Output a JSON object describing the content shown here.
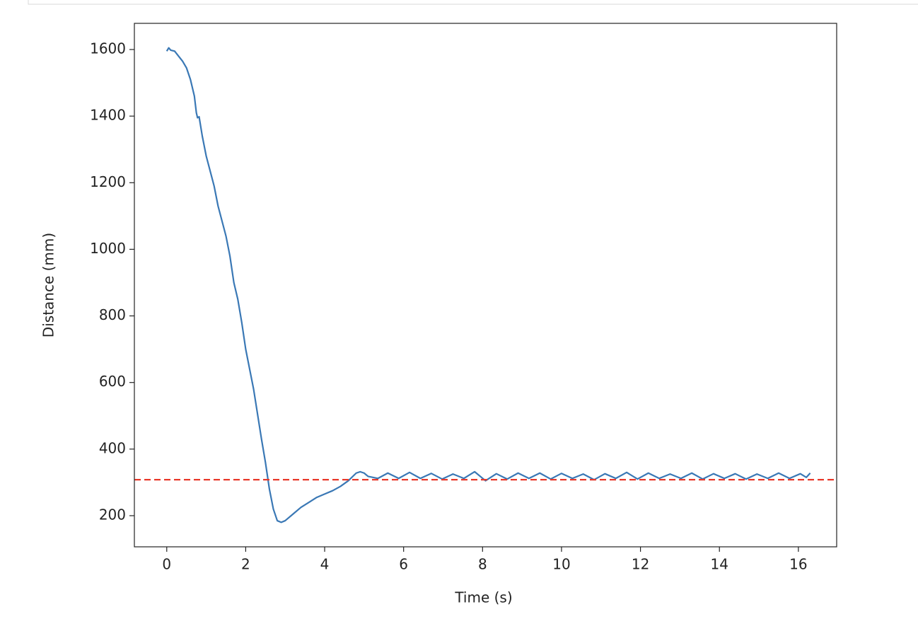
{
  "chart_data": {
    "type": "line",
    "xlabel": "Time (s)",
    "ylabel": "Distance (mm)",
    "color": "#3a78b5",
    "x": [
      0,
      0.05,
      0.1,
      0.2,
      0.3,
      0.4,
      0.5,
      0.6,
      0.7,
      0.75,
      0.78,
      0.82,
      0.9,
      1.0,
      1.2,
      1.3,
      1.5,
      1.6,
      1.7,
      1.8,
      1.9,
      2.0,
      2.2,
      2.4,
      2.5,
      2.6,
      2.7,
      2.8,
      2.9,
      3.0,
      3.2,
      3.4,
      3.6,
      3.8,
      4.0,
      4.2,
      4.4,
      4.6,
      4.8,
      4.9,
      5.0,
      5.1,
      5.35,
      5.6,
      5.875,
      6.15,
      6.425,
      6.7,
      6.975,
      7.25,
      7.525,
      7.8,
      8.075,
      8.35,
      8.625,
      8.9,
      9.175,
      9.45,
      9.725,
      10.0,
      10.275,
      10.55,
      10.825,
      11.1,
      11.375,
      11.65,
      11.925,
      12.2,
      12.475,
      12.75,
      13.025,
      13.3,
      13.575,
      13.85,
      14.125,
      14.4,
      14.675,
      14.95,
      15.225,
      15.5,
      15.775,
      16.05,
      16.2,
      16.3
    ],
    "values": [
      1595,
      1605,
      1598,
      1595,
      1580,
      1565,
      1545,
      1510,
      1460,
      1410,
      1395,
      1398,
      1340,
      1280,
      1190,
      1130,
      1040,
      980,
      900,
      850,
      780,
      700,
      580,
      430,
      360,
      280,
      220,
      185,
      180,
      185,
      205,
      225,
      240,
      255,
      265,
      275,
      288,
      305,
      328,
      332,
      328,
      318,
      312,
      328,
      312,
      330,
      312,
      327,
      310,
      325,
      312,
      332,
      305,
      326,
      310,
      328,
      312,
      328,
      310,
      327,
      312,
      325,
      308,
      326,
      312,
      330,
      310,
      328,
      312,
      325,
      312,
      328,
      310,
      326,
      312,
      326,
      310,
      325,
      312,
      328,
      312,
      326,
      315,
      328
    ],
    "hline": {
      "value": 308,
      "color": "#e8392b"
    },
    "xlim": [
      -0.82,
      16.97
    ],
    "xticks": [
      0,
      2,
      4,
      6,
      8,
      10,
      12,
      14,
      16
    ],
    "ylim": [
      106.5,
      1678.6
    ],
    "yticks": [
      200,
      400,
      600,
      800,
      1000,
      1200,
      1400,
      1600
    ]
  }
}
